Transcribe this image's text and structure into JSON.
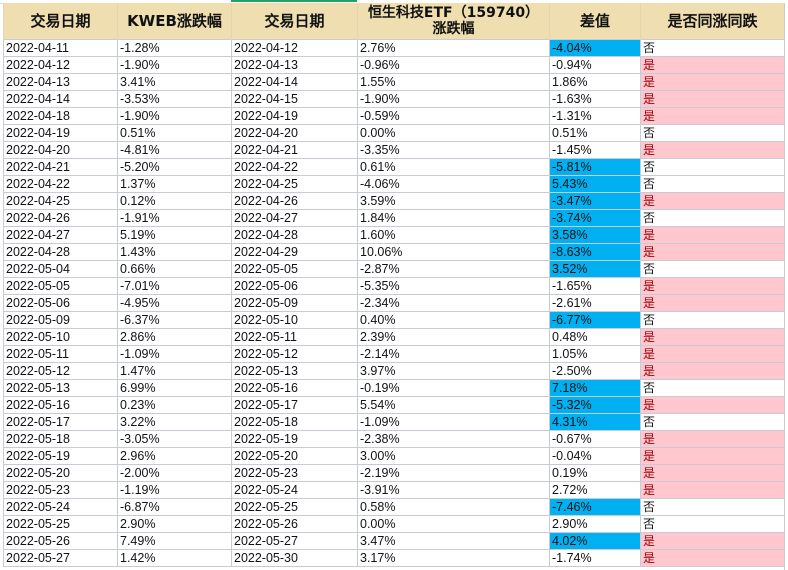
{
  "headers": [
    "交易日期",
    "KWEB涨跌幅",
    "交易日期",
    "恒生科技ETF（159740）涨跌幅",
    "差值",
    "是否同涨同跌"
  ],
  "header_lines": {
    "col4_line1": "恒生科技ETF（159740）",
    "col4_line2": "涨跌幅"
  },
  "colors": {
    "header_bg": "#efdfb0",
    "highlight_blue": "#00b0f0",
    "yes_bg": "#ffc7ce",
    "yes_text": "#9c0006",
    "grid": "#c6cbd6",
    "selected_tab": "#21a366"
  },
  "rows": [
    {
      "d1": "2022-04-11",
      "kweb": "-1.28%",
      "d2": "2022-04-12",
      "hs": "2.76%",
      "diff": "-4.04%",
      "same": "否",
      "hl": true
    },
    {
      "d1": "2022-04-12",
      "kweb": "-1.90%",
      "d2": "2022-04-13",
      "hs": "-0.96%",
      "diff": "-0.94%",
      "same": "是",
      "hl": false
    },
    {
      "d1": "2022-04-13",
      "kweb": "3.41%",
      "d2": "2022-04-14",
      "hs": "1.55%",
      "diff": "1.86%",
      "same": "是",
      "hl": false
    },
    {
      "d1": "2022-04-14",
      "kweb": "-3.53%",
      "d2": "2022-04-15",
      "hs": "-1.90%",
      "diff": "-1.63%",
      "same": "是",
      "hl": false
    },
    {
      "d1": "2022-04-18",
      "kweb": "-1.90%",
      "d2": "2022-04-19",
      "hs": "-0.59%",
      "diff": "-1.31%",
      "same": "是",
      "hl": false
    },
    {
      "d1": "2022-04-19",
      "kweb": "0.51%",
      "d2": "2022-04-20",
      "hs": "0.00%",
      "diff": "0.51%",
      "same": "否",
      "hl": false
    },
    {
      "d1": "2022-04-20",
      "kweb": "-4.81%",
      "d2": "2022-04-21",
      "hs": "-3.35%",
      "diff": "-1.45%",
      "same": "是",
      "hl": false
    },
    {
      "d1": "2022-04-21",
      "kweb": "-5.20%",
      "d2": "2022-04-22",
      "hs": "0.61%",
      "diff": "-5.81%",
      "same": "否",
      "hl": true
    },
    {
      "d1": "2022-04-22",
      "kweb": "1.37%",
      "d2": "2022-04-25",
      "hs": "-4.06%",
      "diff": "5.43%",
      "same": "否",
      "hl": true
    },
    {
      "d1": "2022-04-25",
      "kweb": "0.12%",
      "d2": "2022-04-26",
      "hs": "3.59%",
      "diff": "-3.47%",
      "same": "是",
      "hl": true
    },
    {
      "d1": "2022-04-26",
      "kweb": "-1.91%",
      "d2": "2022-04-27",
      "hs": "1.84%",
      "diff": "-3.74%",
      "same": "否",
      "hl": true
    },
    {
      "d1": "2022-04-27",
      "kweb": "5.19%",
      "d2": "2022-04-28",
      "hs": "1.60%",
      "diff": "3.58%",
      "same": "是",
      "hl": true
    },
    {
      "d1": "2022-04-28",
      "kweb": "1.43%",
      "d2": "2022-04-29",
      "hs": "10.06%",
      "diff": "-8.63%",
      "same": "是",
      "hl": true
    },
    {
      "d1": "2022-05-04",
      "kweb": "0.66%",
      "d2": "2022-05-05",
      "hs": "-2.87%",
      "diff": "3.52%",
      "same": "否",
      "hl": true
    },
    {
      "d1": "2022-05-05",
      "kweb": "-7.01%",
      "d2": "2022-05-06",
      "hs": "-5.35%",
      "diff": "-1.65%",
      "same": "是",
      "hl": false
    },
    {
      "d1": "2022-05-06",
      "kweb": "-4.95%",
      "d2": "2022-05-09",
      "hs": "-2.34%",
      "diff": "-2.61%",
      "same": "是",
      "hl": false
    },
    {
      "d1": "2022-05-09",
      "kweb": "-6.37%",
      "d2": "2022-05-10",
      "hs": "0.40%",
      "diff": "-6.77%",
      "same": "否",
      "hl": true
    },
    {
      "d1": "2022-05-10",
      "kweb": "2.86%",
      "d2": "2022-05-11",
      "hs": "2.39%",
      "diff": "0.48%",
      "same": "是",
      "hl": false
    },
    {
      "d1": "2022-05-11",
      "kweb": "-1.09%",
      "d2": "2022-05-12",
      "hs": "-2.14%",
      "diff": "1.05%",
      "same": "是",
      "hl": false
    },
    {
      "d1": "2022-05-12",
      "kweb": "1.47%",
      "d2": "2022-05-13",
      "hs": "3.97%",
      "diff": "-2.50%",
      "same": "是",
      "hl": false
    },
    {
      "d1": "2022-05-13",
      "kweb": "6.99%",
      "d2": "2022-05-16",
      "hs": "-0.19%",
      "diff": "7.18%",
      "same": "否",
      "hl": true
    },
    {
      "d1": "2022-05-16",
      "kweb": "0.23%",
      "d2": "2022-05-17",
      "hs": "5.54%",
      "diff": "-5.32%",
      "same": "是",
      "hl": true
    },
    {
      "d1": "2022-05-17",
      "kweb": "3.22%",
      "d2": "2022-05-18",
      "hs": "-1.09%",
      "diff": "4.31%",
      "same": "否",
      "hl": true
    },
    {
      "d1": "2022-05-18",
      "kweb": "-3.05%",
      "d2": "2022-05-19",
      "hs": "-2.38%",
      "diff": "-0.67%",
      "same": "是",
      "hl": false
    },
    {
      "d1": "2022-05-19",
      "kweb": "2.96%",
      "d2": "2022-05-20",
      "hs": "3.00%",
      "diff": "-0.04%",
      "same": "是",
      "hl": false
    },
    {
      "d1": "2022-05-20",
      "kweb": "-2.00%",
      "d2": "2022-05-23",
      "hs": "-2.19%",
      "diff": "0.19%",
      "same": "是",
      "hl": false
    },
    {
      "d1": "2022-05-23",
      "kweb": "-1.19%",
      "d2": "2022-05-24",
      "hs": "-3.91%",
      "diff": "2.72%",
      "same": "是",
      "hl": false
    },
    {
      "d1": "2022-05-24",
      "kweb": "-6.87%",
      "d2": "2022-05-25",
      "hs": "0.58%",
      "diff": "-7.46%",
      "same": "否",
      "hl": true
    },
    {
      "d1": "2022-05-25",
      "kweb": "2.90%",
      "d2": "2022-05-26",
      "hs": "0.00%",
      "diff": "2.90%",
      "same": "否",
      "hl": false
    },
    {
      "d1": "2022-05-26",
      "kweb": "7.49%",
      "d2": "2022-05-27",
      "hs": "3.47%",
      "diff": "4.02%",
      "same": "是",
      "hl": true
    },
    {
      "d1": "2022-05-27",
      "kweb": "1.42%",
      "d2": "2022-05-30",
      "hs": "3.17%",
      "diff": "-1.74%",
      "same": "是",
      "hl": false
    }
  ]
}
